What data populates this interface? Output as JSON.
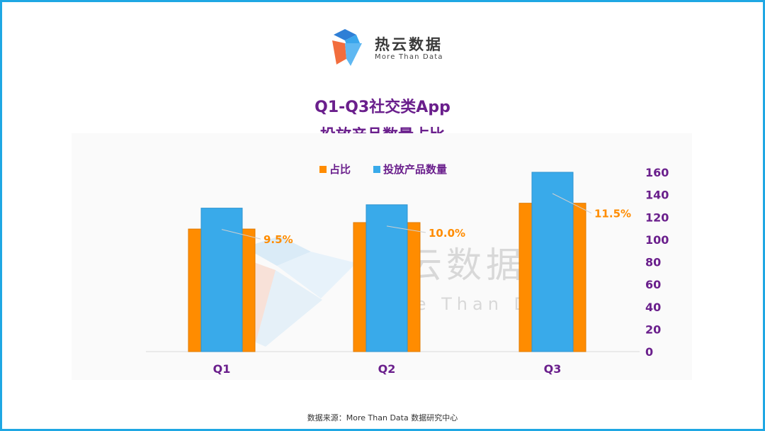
{
  "logo": {
    "name": "热云数据",
    "tagline": "More Than Data"
  },
  "watermark": {
    "name": "热云数据",
    "tagline": "More Than Data"
  },
  "colors": {
    "ratio": "#ff8c00",
    "count": "#39aaea",
    "title": "#6a1f8c",
    "axis": "#6a1f8c",
    "label": "#ff8c00",
    "border": "#1fa7e3"
  },
  "chart_data": {
    "type": "bar",
    "title": "Q1-Q3社交类App",
    "subtitle": "投放产品数量占比",
    "categories": [
      "Q1",
      "Q2",
      "Q3"
    ],
    "series": [
      {
        "name": "占比",
        "values": [
          9.5,
          10.0,
          11.5
        ],
        "labels": [
          "9.5%",
          "10.0%",
          "11.5%"
        ],
        "color": "#ff8c00",
        "axis": "hidden"
      },
      {
        "name": "投放产品数量",
        "values": [
          128,
          131,
          160
        ],
        "color": "#39aaea",
        "axis": "right"
      }
    ],
    "right_axis": {
      "ylim": [
        0,
        160
      ],
      "ticks": [
        "0",
        "20",
        "40",
        "60",
        "80",
        "100",
        "120",
        "140",
        "160"
      ]
    },
    "hidden_axis_max_for_ratio": 13.9,
    "legend_position": "top-center",
    "grid": false
  },
  "source": "数据来源：More Than Data 数据研究中心"
}
